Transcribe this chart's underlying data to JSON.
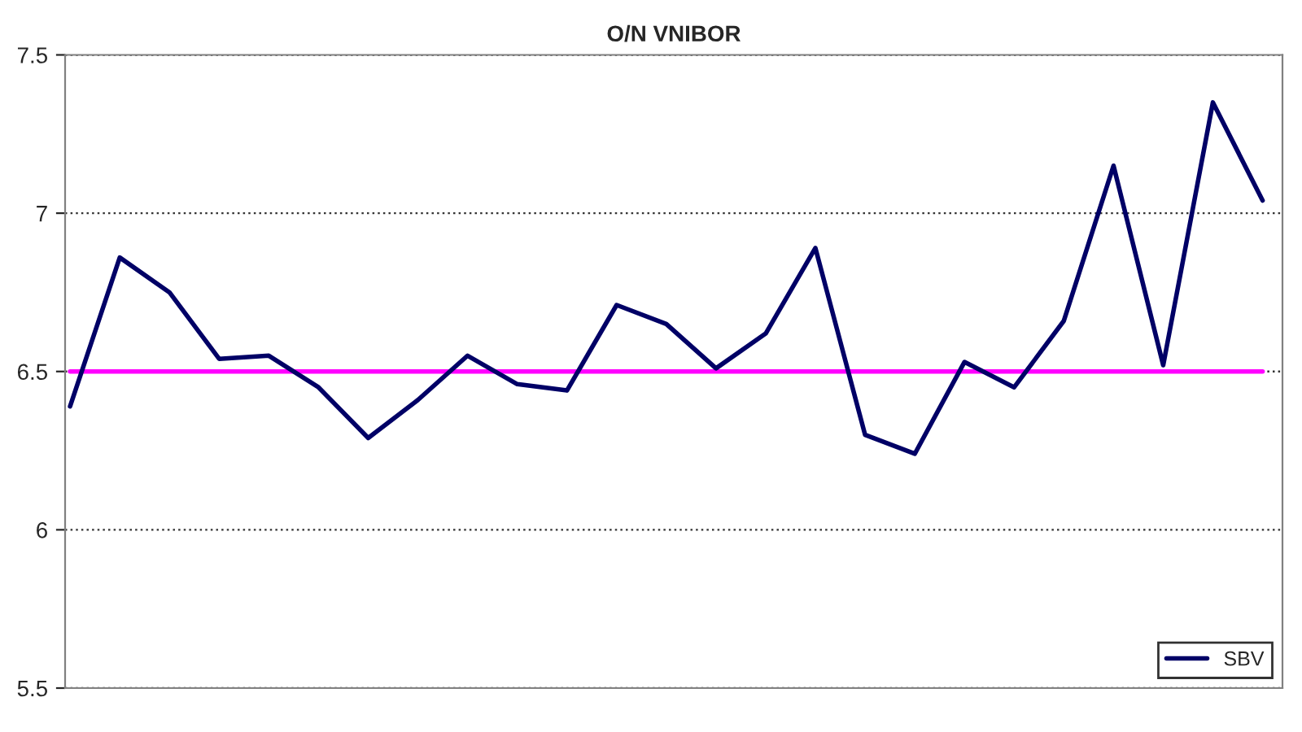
{
  "chart_data": {
    "type": "line",
    "title": "O/N VNIBOR",
    "categories": [
      null,
      null,
      null,
      null,
      null,
      null,
      null,
      null,
      null,
      null,
      null,
      null,
      null,
      null,
      null,
      null,
      null,
      null,
      null,
      null,
      null,
      null,
      null,
      null,
      null
    ],
    "series": [
      {
        "color": "#ff00ff",
        "values": [
          6.5,
          6.5,
          6.5,
          6.5,
          6.5,
          6.5,
          6.5,
          6.5,
          6.5,
          6.5,
          6.5,
          6.5,
          6.5,
          6.5,
          6.5,
          6.5,
          6.5,
          6.5,
          6.5,
          6.5,
          6.5,
          6.5,
          6.5,
          6.5,
          6.5
        ]
      },
      {
        "name": "SBV",
        "color": "#000066",
        "values": [
          6.39,
          6.86,
          6.75,
          6.54,
          6.55,
          6.45,
          6.29,
          6.41,
          6.55,
          6.46,
          6.44,
          6.71,
          6.65,
          6.51,
          6.62,
          6.89,
          6.3,
          6.24,
          6.53,
          6.45,
          6.66,
          7.15,
          6.52,
          7.35,
          7.04
        ]
      }
    ],
    "ylim": [
      5.5,
      7.5
    ],
    "yticks": [
      5.5,
      6,
      6.5,
      7,
      7.5
    ],
    "tick_labels": "y",
    "grid": "y",
    "legend": "bottom right",
    "marker": "none",
    "line_style": "solid"
  }
}
